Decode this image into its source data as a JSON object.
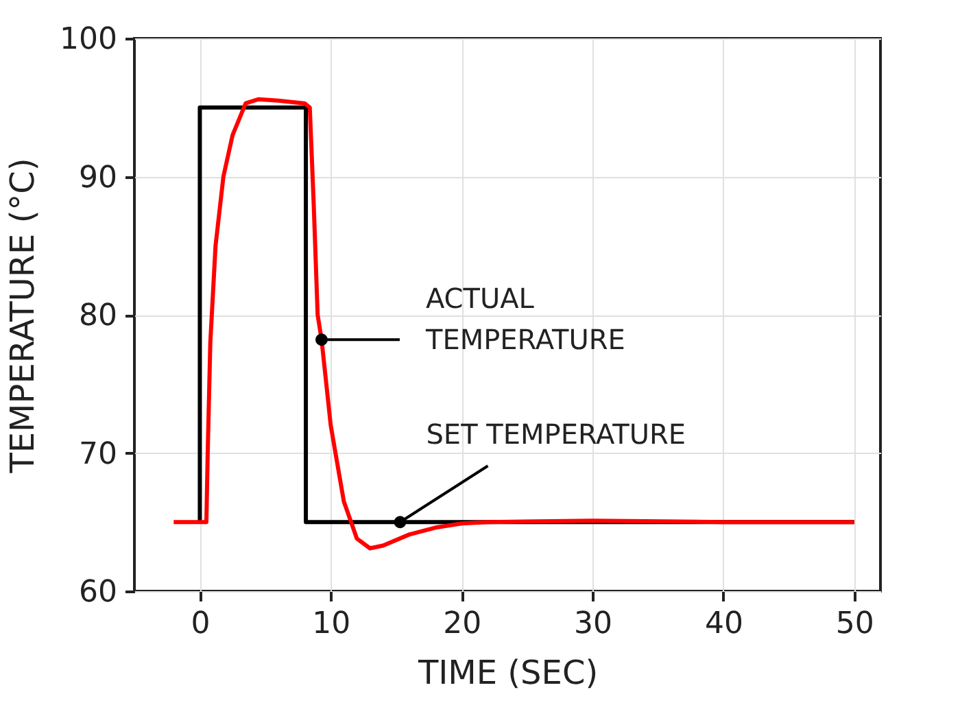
{
  "chart_data": {
    "type": "line",
    "xlabel": "TIME (SEC)",
    "ylabel": "TEMPERATURE (°C)",
    "xlim": [
      -5,
      52
    ],
    "ylim": [
      60,
      100
    ],
    "xticks": [
      0,
      10,
      20,
      30,
      40,
      50
    ],
    "yticks": [
      60,
      70,
      80,
      90,
      100
    ],
    "grid": true,
    "line_style": "solid",
    "marker": "none",
    "series": [
      {
        "color": "#000000",
        "x": [
          0,
          0,
          8.1,
          8.1,
          50
        ],
        "values": [
          65,
          95,
          95,
          65,
          65
        ]
      },
      {
        "color": "#ff0000",
        "x": [
          -2,
          0.5,
          0.6,
          0.8,
          1.2,
          1.8,
          2.5,
          3.5,
          4.5,
          6,
          8,
          8.4,
          8.7,
          9,
          9.3,
          10,
          11,
          12,
          13,
          14,
          16,
          18,
          20,
          22,
          30,
          40,
          50
        ],
        "values": [
          65,
          65,
          70,
          78,
          85,
          90,
          93,
          95.3,
          95.6,
          95.5,
          95.3,
          95,
          88,
          80,
          78.2,
          72,
          66.5,
          63.8,
          63.1,
          63.3,
          64.1,
          64.6,
          64.9,
          65,
          65.1,
          65,
          65
        ]
      }
    ],
    "annotations": [
      {
        "text": "ACTUAL\nTEMPERATURE",
        "x": 9.3,
        "y": 78.2
      },
      {
        "text": "SET TEMPERATURE",
        "x": 15.3,
        "y": 65
      }
    ]
  }
}
